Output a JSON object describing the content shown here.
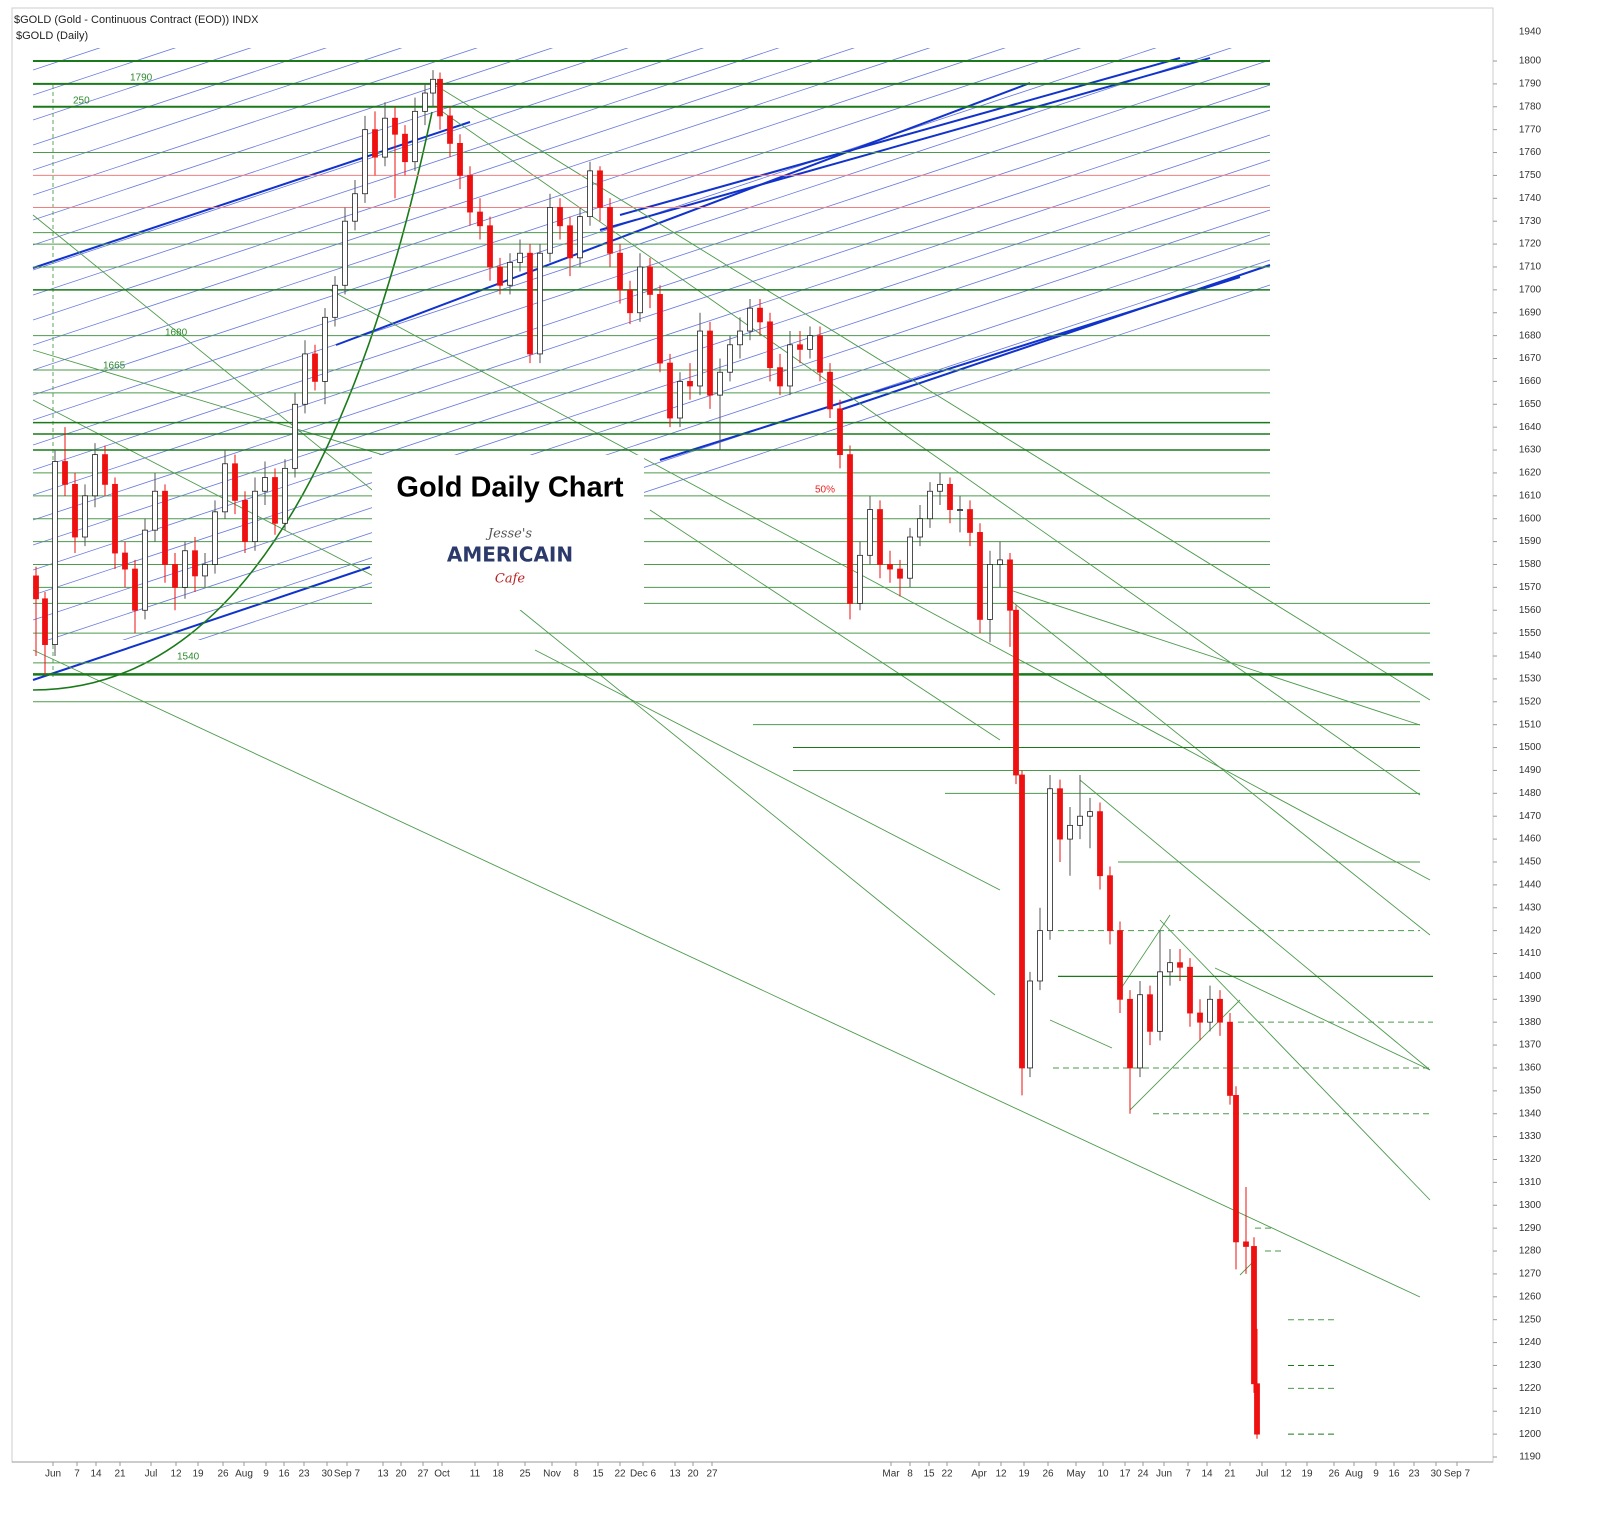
{
  "header": {
    "symbol": "$GOLD (Gold - Continuous Contract (EOD)) INDX",
    "period": "$GOLD (Daily)"
  },
  "logo": {
    "line1": "Jesse's",
    "line2": "AMERICAIN",
    "line3": "Cafe"
  },
  "chart_data": {
    "type": "candlestick",
    "title": "Gold Daily Chart",
    "annotations": [
      "1790",
      "250",
      "1680",
      "1665",
      "1540",
      "50%"
    ],
    "axis_top_label": "1940",
    "up_color": "#ffffff",
    "down_color": "#ee1111",
    "ylim": [
      1190,
      1800
    ],
    "yticks": [
      1190,
      1200,
      1210,
      1220,
      1230,
      1240,
      1250,
      1260,
      1270,
      1280,
      1290,
      1300,
      1310,
      1320,
      1330,
      1340,
      1350,
      1360,
      1370,
      1380,
      1390,
      1400,
      1410,
      1420,
      1430,
      1440,
      1450,
      1460,
      1470,
      1480,
      1490,
      1500,
      1510,
      1520,
      1530,
      1540,
      1550,
      1560,
      1570,
      1580,
      1590,
      1600,
      1610,
      1620,
      1630,
      1640,
      1650,
      1660,
      1670,
      1680,
      1690,
      1700,
      1710,
      1720,
      1730,
      1740,
      1750,
      1760,
      1770,
      1780,
      1790,
      1800
    ],
    "xlim": [
      0,
      1460
    ],
    "xticks": [
      {
        "value": 20,
        "label": "Jun"
      },
      {
        "value": 44,
        "label": "7"
      },
      {
        "value": 63,
        "label": "14"
      },
      {
        "value": 87,
        "label": "21"
      },
      {
        "value": 118,
        "label": "Jul"
      },
      {
        "value": 143,
        "label": "12"
      },
      {
        "value": 165,
        "label": "19"
      },
      {
        "value": 190,
        "label": "26"
      },
      {
        "value": 211,
        "label": "Aug"
      },
      {
        "value": 233,
        "label": "9"
      },
      {
        "value": 251,
        "label": "16"
      },
      {
        "value": 271,
        "label": "23"
      },
      {
        "value": 294,
        "label": "30"
      },
      {
        "value": 314,
        "label": "Sep 7"
      },
      {
        "value": 350,
        "label": "13"
      },
      {
        "value": 368,
        "label": "20"
      },
      {
        "value": 390,
        "label": "27"
      },
      {
        "value": 409,
        "label": "Oct"
      },
      {
        "value": 442,
        "label": "11"
      },
      {
        "value": 465,
        "label": "18"
      },
      {
        "value": 492,
        "label": "25"
      },
      {
        "value": 519,
        "label": "Nov"
      },
      {
        "value": 543,
        "label": "8"
      },
      {
        "value": 565,
        "label": "15"
      },
      {
        "value": 587,
        "label": "22"
      },
      {
        "value": 610,
        "label": "Dec 6"
      },
      {
        "value": 642,
        "label": "13"
      },
      {
        "value": 660,
        "label": "20"
      },
      {
        "value": 679,
        "label": "27"
      },
      {
        "value": 858,
        "label": "Mar"
      },
      {
        "value": 877,
        "label": "8"
      },
      {
        "value": 896,
        "label": "15"
      },
      {
        "value": 914,
        "label": "22"
      },
      {
        "value": 946,
        "label": "Apr"
      },
      {
        "value": 968,
        "label": "12"
      },
      {
        "value": 991,
        "label": "19"
      },
      {
        "value": 1015,
        "label": "26"
      },
      {
        "value": 1043,
        "label": "May"
      },
      {
        "value": 1070,
        "label": "10"
      },
      {
        "value": 1092,
        "label": "17"
      },
      {
        "value": 1110,
        "label": "24"
      },
      {
        "value": 1131,
        "label": "Jun"
      },
      {
        "value": 1155,
        "label": "7"
      },
      {
        "value": 1174,
        "label": "14"
      },
      {
        "value": 1197,
        "label": "21"
      },
      {
        "value": 1229,
        "label": "Jul"
      },
      {
        "value": 1253,
        "label": "12"
      },
      {
        "value": 1274,
        "label": "19"
      },
      {
        "value": 1301,
        "label": "26"
      },
      {
        "value": 1321,
        "label": "Aug"
      },
      {
        "value": 1343,
        "label": "9"
      },
      {
        "value": 1361,
        "label": "16"
      },
      {
        "value": 1381,
        "label": "23"
      },
      {
        "value": 1403,
        "label": "30"
      },
      {
        "value": 1424,
        "label": "Sep 7"
      }
    ],
    "x": [
      3,
      12,
      22,
      32,
      42,
      52,
      62,
      72,
      82,
      92,
      102,
      112,
      122,
      132,
      142,
      152,
      162,
      172,
      182,
      192,
      202,
      212,
      222,
      232,
      242,
      252,
      262,
      272,
      282,
      292,
      302,
      312,
      322,
      332,
      342,
      352,
      362,
      372,
      382,
      392,
      400,
      407,
      417,
      427,
      437,
      447,
      457,
      467,
      477,
      487,
      497,
      507,
      517,
      527,
      537,
      547,
      557,
      567,
      577,
      587,
      597,
      607,
      617,
      627,
      637,
      647,
      657,
      667,
      677,
      687,
      697,
      707,
      717,
      727,
      737,
      747,
      757,
      767,
      777,
      787,
      797,
      807,
      817,
      827,
      837,
      847,
      857,
      867,
      877,
      887,
      897,
      907,
      917,
      927,
      937,
      947,
      957,
      967,
      977,
      983,
      989,
      997,
      1007,
      1017,
      1027,
      1037,
      1047,
      1057,
      1067,
      1077,
      1087,
      1097,
      1107,
      1117,
      1127,
      1137,
      1147,
      1157,
      1167,
      1177,
      1187,
      1197,
      1203,
      1213,
      1221,
      1224
    ],
    "open": [
      1575,
      1565,
      1545,
      1625,
      1615,
      1592,
      1610,
      1628,
      1615,
      1585,
      1578,
      1560,
      1595,
      1612,
      1580,
      1570,
      1586,
      1575,
      1580,
      1603,
      1624,
      1608,
      1590,
      1612,
      1618,
      1598,
      1622,
      1650,
      1672,
      1660,
      1688,
      1702,
      1730,
      1742,
      1770,
      1758,
      1775,
      1768,
      1756,
      1778,
      1786,
      1792,
      1776,
      1764,
      1750,
      1734,
      1728,
      1710,
      1702,
      1712,
      1716,
      1672,
      1716,
      1736,
      1728,
      1714,
      1732,
      1752,
      1736,
      1716,
      1700,
      1690,
      1710,
      1698,
      1668,
      1644,
      1660,
      1658,
      1682,
      1654,
      1664,
      1676,
      1682,
      1692,
      1686,
      1666,
      1658,
      1676,
      1674,
      1680,
      1664,
      1648,
      1628,
      1563,
      1584,
      1604,
      1580,
      1578,
      1574,
      1592,
      1600,
      1612,
      1615,
      1604,
      1604,
      1594,
      1556,
      1580,
      1582,
      1560,
      1488,
      1360,
      1398,
      1420,
      1482,
      1460,
      1466,
      1470,
      1472,
      1444,
      1420,
      1390,
      1360,
      1392,
      1376,
      1402,
      1406,
      1404,
      1384,
      1380,
      1390,
      1380,
      1348,
      1284,
      1282,
      1222
    ],
    "high": [
      1579,
      1568,
      1630,
      1640,
      1620,
      1615,
      1633,
      1632,
      1618,
      1590,
      1582,
      1600,
      1620,
      1615,
      1585,
      1590,
      1592,
      1585,
      1608,
      1630,
      1628,
      1612,
      1618,
      1625,
      1622,
      1626,
      1655,
      1678,
      1676,
      1692,
      1706,
      1736,
      1748,
      1776,
      1778,
      1782,
      1780,
      1772,
      1784,
      1790,
      1796,
      1795,
      1780,
      1768,
      1754,
      1740,
      1732,
      1714,
      1716,
      1722,
      1720,
      1720,
      1742,
      1740,
      1732,
      1736,
      1756,
      1754,
      1740,
      1720,
      1704,
      1716,
      1714,
      1702,
      1672,
      1664,
      1668,
      1690,
      1686,
      1670,
      1680,
      1688,
      1696,
      1696,
      1690,
      1672,
      1682,
      1682,
      1684,
      1684,
      1668,
      1652,
      1632,
      1590,
      1610,
      1608,
      1586,
      1582,
      1596,
      1606,
      1616,
      1620,
      1618,
      1610,
      1608,
      1598,
      1586,
      1590,
      1585,
      1562,
      1490,
      1402,
      1430,
      1488,
      1486,
      1474,
      1488,
      1478,
      1476,
      1448,
      1424,
      1394,
      1398,
      1396,
      1420,
      1412,
      1412,
      1408,
      1390,
      1396,
      1394,
      1384,
      1352,
      1308,
      1286,
      1246
    ],
    "low": [
      1540,
      1532,
      1540,
      1610,
      1585,
      1588,
      1605,
      1610,
      1578,
      1570,
      1550,
      1556,
      1590,
      1572,
      1560,
      1565,
      1568,
      1570,
      1576,
      1600,
      1602,
      1585,
      1586,
      1606,
      1593,
      1595,
      1618,
      1646,
      1656,
      1650,
      1684,
      1698,
      1726,
      1738,
      1750,
      1754,
      1740,
      1750,
      1752,
      1772,
      1780,
      1770,
      1758,
      1744,
      1728,
      1722,
      1704,
      1698,
      1698,
      1708,
      1668,
      1668,
      1712,
      1722,
      1706,
      1710,
      1728,
      1730,
      1710,
      1694,
      1685,
      1686,
      1692,
      1664,
      1640,
      1640,
      1652,
      1654,
      1648,
      1630,
      1660,
      1670,
      1678,
      1680,
      1660,
      1654,
      1654,
      1668,
      1670,
      1660,
      1644,
      1622,
      1556,
      1560,
      1580,
      1574,
      1572,
      1566,
      1570,
      1588,
      1596,
      1606,
      1598,
      1594,
      1588,
      1550,
      1546,
      1570,
      1544,
      1484,
      1348,
      1356,
      1394,
      1416,
      1450,
      1444,
      1460,
      1456,
      1438,
      1414,
      1384,
      1340,
      1356,
      1370,
      1372,
      1396,
      1398,
      1378,
      1372,
      1376,
      1374,
      1344,
      1272,
      1270,
      1218,
      1198
    ],
    "close": [
      1565,
      1545,
      1625,
      1615,
      1592,
      1610,
      1628,
      1615,
      1585,
      1578,
      1560,
      1595,
      1612,
      1580,
      1570,
      1586,
      1575,
      1580,
      1603,
      1624,
      1608,
      1590,
      1612,
      1618,
      1598,
      1622,
      1650,
      1672,
      1660,
      1688,
      1702,
      1730,
      1742,
      1770,
      1758,
      1775,
      1768,
      1756,
      1778,
      1786,
      1792,
      1776,
      1764,
      1750,
      1734,
      1728,
      1710,
      1702,
      1712,
      1716,
      1672,
      1716,
      1736,
      1728,
      1714,
      1732,
      1752,
      1736,
      1716,
      1700,
      1690,
      1710,
      1698,
      1668,
      1644,
      1660,
      1658,
      1682,
      1654,
      1664,
      1676,
      1682,
      1692,
      1686,
      1666,
      1658,
      1676,
      1674,
      1680,
      1664,
      1648,
      1628,
      1563,
      1584,
      1604,
      1580,
      1578,
      1574,
      1592,
      1600,
      1612,
      1615,
      1604,
      1604,
      1594,
      1556,
      1580,
      1582,
      1560,
      1488,
      1360,
      1398,
      1420,
      1482,
      1460,
      1466,
      1470,
      1472,
      1444,
      1420,
      1390,
      1360,
      1392,
      1376,
      1402,
      1406,
      1404,
      1384,
      1380,
      1390,
      1380,
      1348,
      1284,
      1282,
      1222,
      1200
    ],
    "levels": [
      {
        "value": 1800,
        "from": 0,
        "to": 1237,
        "color": "#1a7a1a",
        "width": 2
      },
      {
        "value": 1790,
        "from": 0,
        "to": 1237,
        "color": "#1a7a1a",
        "width": 2
      },
      {
        "value": 1780,
        "from": 0,
        "to": 1237,
        "color": "#1a7a1a",
        "width": 2
      },
      {
        "value": 1760,
        "from": 0,
        "to": 1237,
        "color": "#4d9a4d",
        "width": 1
      },
      {
        "value": 1750,
        "from": 0,
        "to": 1237,
        "color": "#f08080",
        "width": 1
      },
      {
        "value": 1736,
        "from": 0,
        "to": 1237,
        "color": "#f08080",
        "width": 1
      },
      {
        "value": 1725,
        "from": 0,
        "to": 1237,
        "color": "#4d9a4d",
        "width": 1
      },
      {
        "value": 1720,
        "from": 0,
        "to": 1237,
        "color": "#4d9a4d",
        "width": 1
      },
      {
        "value": 1710,
        "from": 0,
        "to": 1237,
        "color": "#4d9a4d",
        "width": 1
      },
      {
        "value": 1700,
        "from": 0,
        "to": 1237,
        "color": "#1a7a1a",
        "width": 1.5
      },
      {
        "value": 1680,
        "from": 0,
        "to": 1237,
        "color": "#4d9a4d",
        "width": 1
      },
      {
        "value": 1665,
        "from": 0,
        "to": 1237,
        "color": "#4d9a4d",
        "width": 1
      },
      {
        "value": 1655,
        "from": 0,
        "to": 1237,
        "color": "#4d9a4d",
        "width": 1
      },
      {
        "value": 1642,
        "from": 0,
        "to": 1237,
        "color": "#1a7a1a",
        "width": 1.5
      },
      {
        "value": 1637,
        "from": 0,
        "to": 1237,
        "color": "#1a7a1a",
        "width": 1.5
      },
      {
        "value": 1630,
        "from": 0,
        "to": 1237,
        "color": "#1a7a1a",
        "width": 1.5
      },
      {
        "value": 1620,
        "from": 0,
        "to": 1237,
        "color": "#4d9a4d",
        "width": 1
      },
      {
        "value": 1610,
        "from": 0,
        "to": 1237,
        "color": "#4d9a4d",
        "width": 1
      },
      {
        "value": 1600,
        "from": 0,
        "to": 1237,
        "color": "#4d9a4d",
        "width": 1
      },
      {
        "value": 1590,
        "from": 0,
        "to": 1237,
        "color": "#4d9a4d",
        "width": 1
      },
      {
        "value": 1580,
        "from": 0,
        "to": 1237,
        "color": "#4d9a4d",
        "width": 1
      },
      {
        "value": 1570,
        "from": 0,
        "to": 1237,
        "color": "#4d9a4d",
        "width": 1
      },
      {
        "value": 1563,
        "from": 0,
        "to": 1397,
        "color": "#4d9a4d",
        "width": 1
      },
      {
        "value": 1550,
        "from": 0,
        "to": 1397,
        "color": "#4d9a4d",
        "width": 1
      },
      {
        "value": 1537,
        "from": 0,
        "to": 1397,
        "color": "#4d9a4d",
        "width": 1
      },
      {
        "value": 1532,
        "from": 0,
        "to": 1400,
        "color": "#1a7a1a",
        "width": 2.5
      },
      {
        "value": 1520,
        "from": 0,
        "to": 1387,
        "color": "#4d9a4d",
        "width": 1
      },
      {
        "value": 1510,
        "from": 720,
        "to": 1387,
        "color": "#4d9a4d",
        "width": 1
      },
      {
        "value": 1500,
        "from": 760,
        "to": 1387,
        "color": "#1a7a1a",
        "width": 1
      },
      {
        "value": 1490,
        "from": 760,
        "to": 1387,
        "color": "#4d9a4d",
        "width": 1
      },
      {
        "value": 1480,
        "from": 912,
        "to": 1387,
        "color": "#4d9a4d",
        "width": 1
      },
      {
        "value": 1450,
        "from": 1085,
        "to": 1387,
        "color": "#4d9a4d",
        "width": 1
      },
      {
        "value": 1420,
        "from": 1025,
        "to": 1387,
        "color": "#4d9a4d",
        "width": 1,
        "dashed": true
      },
      {
        "value": 1400,
        "from": 1025,
        "to": 1400,
        "color": "#1a7a1a",
        "width": 1.2
      },
      {
        "value": 1380,
        "from": 1205,
        "to": 1400,
        "color": "#4d9a4d",
        "width": 1,
        "dashed": true
      },
      {
        "value": 1360,
        "from": 1020,
        "to": 1400,
        "color": "#4d9a4d",
        "width": 1,
        "dashed": true
      },
      {
        "value": 1340,
        "from": 1120,
        "to": 1400,
        "color": "#4d9a4d",
        "width": 1,
        "dashed": true
      },
      {
        "value": 1290,
        "from": 1222,
        "to": 1240,
        "color": "#4d9a4d",
        "width": 1,
        "dashed": true
      },
      {
        "value": 1280,
        "from": 1232,
        "to": 1250,
        "color": "#4d9a4d",
        "width": 1,
        "dashed": true
      },
      {
        "value": 1250,
        "from": 1255,
        "to": 1302,
        "color": "#4d9a4d",
        "width": 1,
        "dashed": true
      },
      {
        "value": 1230,
        "from": 1255,
        "to": 1302,
        "color": "#1a7a1a",
        "width": 1,
        "dashed": true
      },
      {
        "value": 1220,
        "from": 1255,
        "to": 1302,
        "color": "#4d9a4d",
        "width": 1,
        "dashed": true
      },
      {
        "value": 1200,
        "from": 1255,
        "to": 1302,
        "color": "#1a7a1a",
        "width": 1,
        "dashed": true
      }
    ]
  }
}
